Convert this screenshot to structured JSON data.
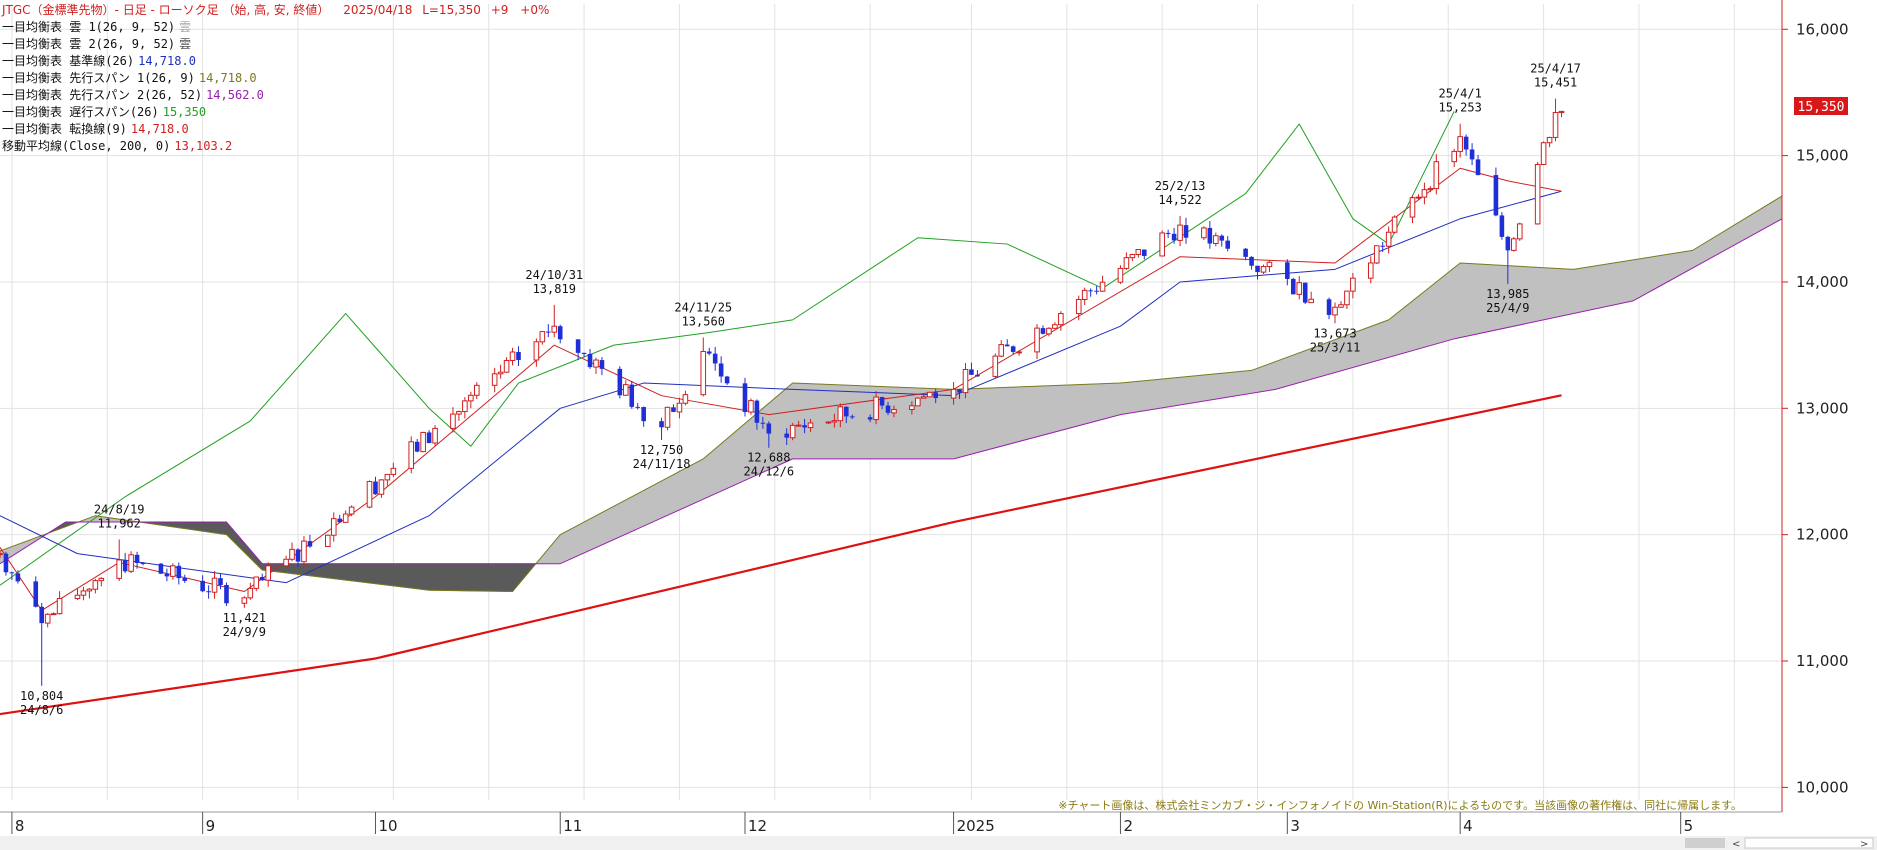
{
  "header": {
    "title": "JTGC（金標準先物）- 日足 - ローソク足 （始, 高, 安, 終値）",
    "date": "2025/04/18",
    "last": "L=15,350",
    "change": "+9",
    "pct": "+0%"
  },
  "legend": [
    {
      "label": "一目均衡表 雲 1(26, 9, 52)",
      "value": "雲",
      "color": "#aaaaaa"
    },
    {
      "label": "一目均衡表 雲 2(26, 9, 52)",
      "value": "雲",
      "color": "#555555"
    },
    {
      "label": "一目均衡表 基準線(26)",
      "value": "14,718.0",
      "color": "#1f2fbf"
    },
    {
      "label": "一目均衡表 先行スパン 1(26, 9)",
      "value": "14,718.0",
      "color": "#7a7a20"
    },
    {
      "label": "一目均衡表 先行スパン 2(26, 52)",
      "value": "14,562.0",
      "color": "#9a20b0"
    },
    {
      "label": "一目均衡表 遅行スパン(26)",
      "value": "15,350",
      "color": "#20a020"
    },
    {
      "label": "一目均衡表 転換線(9)",
      "value": "14,718.0",
      "color": "#d02020"
    },
    {
      "label": "移動平均線(Close, 200, 0)",
      "value": "13,103.2",
      "color": "#d02020"
    }
  ],
  "price_tag": "15,350",
  "copyright": "※チャート画像は、株式会社ミンカブ・ジ・インフォノイドの Win-Station(R)によるものです。当該画像の著作権は、同社に帰属します。",
  "colors": {
    "up": "#d02020",
    "down": "#1f2fd8",
    "kijun": "#1f2fbf",
    "tenkan": "#d02020",
    "chikou": "#20a020",
    "span1": "#7a7a20",
    "span2": "#9a20b0",
    "ma": "#dd1111",
    "cloud_up": "#c0c0c0",
    "cloud_down": "#5a5a5a",
    "grid": "#e2e2e2",
    "axis": "#d02020"
  },
  "chart_data": {
    "type": "candlestick",
    "y_ticks": [
      "16,000",
      "15,000",
      "14,000",
      "13,000",
      "12,000",
      "11,000",
      "10,000"
    ],
    "y_tick_values": [
      16000,
      15000,
      14000,
      13000,
      12000,
      11000,
      10000
    ],
    "ylim": [
      9900,
      16200
    ],
    "x_ticks": [
      "8",
      "9",
      "10",
      "11",
      "12",
      "2025",
      "2",
      "3",
      "4",
      "5"
    ],
    "x_tick_dates": [
      "2024-08-01",
      "2024-09-02",
      "2024-10-01",
      "2024-11-01",
      "2024-12-02",
      "2025-01-06",
      "2025-02-03",
      "2025-03-03",
      "2025-04-01",
      "2025-05-08"
    ],
    "date_range": [
      "2024-07-30",
      "2025-05-25"
    ],
    "annotations": [
      {
        "price": "10,804",
        "date": "24/8/6",
        "position": "below"
      },
      {
        "price": "11,962",
        "date": "24/8/19",
        "position": "above"
      },
      {
        "price": "11,421",
        "date": "24/9/9",
        "position": "below"
      },
      {
        "price": "13,819",
        "date": "24/10/31",
        "position": "above"
      },
      {
        "price": "12,750",
        "date": "24/11/18",
        "position": "below"
      },
      {
        "price": "13,560",
        "date": "24/11/25",
        "position": "above"
      },
      {
        "price": "12,688",
        "date": "24/12/6",
        "position": "below"
      },
      {
        "price": "14,522",
        "date": "25/2/13",
        "position": "above"
      },
      {
        "price": "13,673",
        "date": "25/3/11",
        "position": "below"
      },
      {
        "price": "15,253",
        "date": "25/4/1",
        "position": "above"
      },
      {
        "price": "13,985",
        "date": "25/4/9",
        "position": "below"
      },
      {
        "price": "15,451",
        "date": "25/4/17",
        "position": "above"
      }
    ],
    "key_points": [
      {
        "date": "2024-07-30",
        "close": 11850
      },
      {
        "date": "2024-08-06",
        "low": 10804,
        "close": 11300
      },
      {
        "date": "2024-08-19",
        "high": 11962,
        "close": 11800
      },
      {
        "date": "2024-09-09",
        "low": 11421,
        "close": 11500
      },
      {
        "date": "2024-10-31",
        "high": 13819,
        "close": 13650
      },
      {
        "date": "2024-11-18",
        "low": 12750,
        "close": 12850
      },
      {
        "date": "2024-11-25",
        "high": 13560,
        "close": 13450
      },
      {
        "date": "2024-12-06",
        "low": 12688,
        "close": 12800
      },
      {
        "date": "2025-01-06",
        "close": 13150
      },
      {
        "date": "2025-02-13",
        "high": 14522,
        "close": 14450
      },
      {
        "date": "2025-03-11",
        "low": 13673,
        "close": 13800
      },
      {
        "date": "2025-04-01",
        "high": 15253,
        "close": 15150
      },
      {
        "date": "2025-04-09",
        "low": 13985,
        "close": 14250
      },
      {
        "date": "2025-04-17",
        "high": 15451,
        "close": 15341
      },
      {
        "date": "2025-04-18",
        "close": 15350
      }
    ],
    "ma200": [
      {
        "date": "2024-07-30",
        "value": 10580
      },
      {
        "date": "2024-10-01",
        "value": 11020
      },
      {
        "date": "2025-01-06",
        "value": 12100
      },
      {
        "date": "2025-04-18",
        "value": 13103.2
      }
    ],
    "span1": [
      {
        "date": "2024-07-30",
        "value": 11870
      },
      {
        "date": "2024-08-15",
        "value": 12150
      },
      {
        "date": "2024-09-06",
        "value": 12000
      },
      {
        "date": "2024-09-12",
        "value": 11720
      },
      {
        "date": "2024-10-10",
        "value": 11560
      },
      {
        "date": "2024-10-24",
        "value": 11550
      },
      {
        "date": "2024-11-01",
        "value": 12000
      },
      {
        "date": "2024-11-25",
        "value": 12600
      },
      {
        "date": "2024-12-10",
        "value": 13200
      },
      {
        "date": "2025-01-06",
        "value": 13150
      },
      {
        "date": "2025-02-03",
        "value": 13200
      },
      {
        "date": "2025-02-25",
        "value": 13300
      },
      {
        "date": "2025-03-20",
        "value": 13700
      },
      {
        "date": "2025-04-01",
        "value": 14150
      },
      {
        "date": "2025-04-20",
        "value": 14100
      },
      {
        "date": "2025-05-10",
        "value": 14250
      },
      {
        "date": "2025-05-25",
        "value": 14680
      }
    ],
    "span2": [
      {
        "date": "2024-07-30",
        "value": 11770
      },
      {
        "date": "2024-08-10",
        "value": 12100
      },
      {
        "date": "2024-09-06",
        "value": 12100
      },
      {
        "date": "2024-09-12",
        "value": 11770
      },
      {
        "date": "2024-11-01",
        "value": 11770
      },
      {
        "date": "2024-12-10",
        "value": 12600
      },
      {
        "date": "2025-01-06",
        "value": 12600
      },
      {
        "date": "2025-02-03",
        "value": 12950
      },
      {
        "date": "2025-03-01",
        "value": 13150
      },
      {
        "date": "2025-03-31",
        "value": 13550
      },
      {
        "date": "2025-04-30",
        "value": 13850
      },
      {
        "date": "2025-05-25",
        "value": 14500
      }
    ],
    "kijun": [
      {
        "date": "2024-07-30",
        "value": 12150
      },
      {
        "date": "2024-08-12",
        "value": 11850
      },
      {
        "date": "2024-09-16",
        "value": 11620
      },
      {
        "date": "2024-10-10",
        "value": 12150
      },
      {
        "date": "2024-11-01",
        "value": 13000
      },
      {
        "date": "2024-11-15",
        "value": 13200
      },
      {
        "date": "2024-12-10",
        "value": 13150
      },
      {
        "date": "2025-01-06",
        "value": 13100
      },
      {
        "date": "2025-02-03",
        "value": 13650
      },
      {
        "date": "2025-02-13",
        "value": 14000
      },
      {
        "date": "2025-03-11",
        "value": 14100
      },
      {
        "date": "2025-04-01",
        "value": 14500
      },
      {
        "date": "2025-04-18",
        "value": 14718
      }
    ],
    "tenkan": [
      {
        "date": "2024-07-30",
        "value": 11900
      },
      {
        "date": "2024-08-06",
        "value": 11400
      },
      {
        "date": "2024-08-19",
        "value": 11780
      },
      {
        "date": "2024-09-09",
        "value": 11550
      },
      {
        "date": "2024-10-01",
        "value": 12300
      },
      {
        "date": "2024-10-31",
        "value": 13500
      },
      {
        "date": "2024-11-18",
        "value": 13100
      },
      {
        "date": "2024-12-06",
        "value": 12950
      },
      {
        "date": "2025-01-06",
        "value": 13150
      },
      {
        "date": "2025-02-13",
        "value": 14200
      },
      {
        "date": "2025-03-11",
        "value": 14150
      },
      {
        "date": "2025-04-01",
        "value": 14900
      },
      {
        "date": "2025-04-09",
        "value": 14800
      },
      {
        "date": "2025-04-18",
        "value": 14718
      }
    ],
    "chikou": [
      {
        "date": "2024-07-30",
        "value": 11600
      },
      {
        "date": "2024-08-20",
        "value": 12300
      },
      {
        "date": "2024-09-10",
        "value": 12900
      },
      {
        "date": "2024-09-26",
        "value": 13750
      },
      {
        "date": "2024-10-10",
        "value": 13000
      },
      {
        "date": "2024-10-17",
        "value": 12700
      },
      {
        "date": "2024-10-25",
        "value": 13200
      },
      {
        "date": "2024-11-10",
        "value": 13500
      },
      {
        "date": "2024-11-26",
        "value": 13600
      },
      {
        "date": "2024-12-10",
        "value": 13700
      },
      {
        "date": "2024-12-31",
        "value": 14350
      },
      {
        "date": "2025-01-15",
        "value": 14300
      },
      {
        "date": "2025-01-31",
        "value": 13950
      },
      {
        "date": "2025-02-24",
        "value": 14700
      },
      {
        "date": "2025-03-05",
        "value": 15250
      },
      {
        "date": "2025-03-14",
        "value": 14500
      },
      {
        "date": "2025-03-20",
        "value": 14300
      },
      {
        "date": "2025-03-31",
        "value": 15350
      }
    ]
  }
}
